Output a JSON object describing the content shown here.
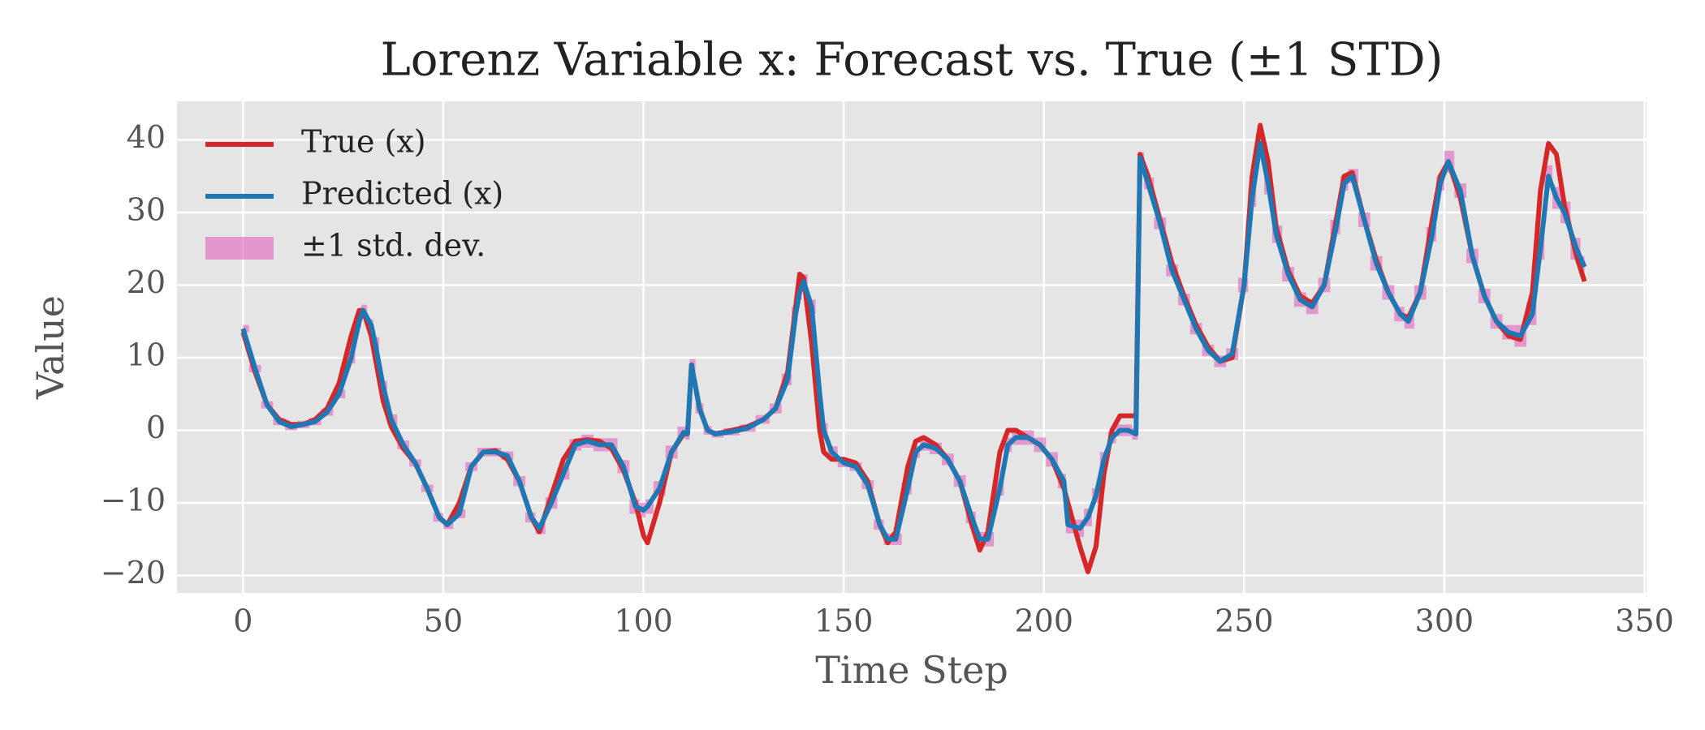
{
  "chart_data": {
    "type": "line",
    "title": "Lorenz Variable x: Forecast vs. True (±1 STD)",
    "xlabel": "Time Step",
    "ylabel": "Value",
    "xlim": [
      -16.5,
      350.5
    ],
    "ylim": [
      -22.4,
      45.3
    ],
    "xticks": [
      0,
      50,
      100,
      150,
      200,
      250,
      300,
      350
    ],
    "yticks": [
      {
        "value": -20,
        "label": "−20"
      },
      {
        "value": -10,
        "label": "−10"
      },
      0,
      10,
      20,
      30,
      40
    ],
    "grid": true,
    "legend": "upper left",
    "x": [
      0,
      3,
      6,
      9,
      12,
      15,
      18,
      21,
      24,
      27,
      29,
      30,
      32,
      33,
      35,
      37,
      40,
      43,
      46,
      49,
      51,
      54,
      57,
      60,
      63,
      66,
      69,
      72,
      74,
      77,
      80,
      83,
      86,
      89,
      92,
      95,
      98,
      100,
      101,
      104,
      107,
      110,
      111,
      112,
      114,
      116,
      118,
      122,
      126,
      130,
      133,
      136,
      138,
      139,
      140,
      142,
      144,
      145,
      147,
      150,
      153,
      156,
      159,
      161,
      163,
      166,
      168,
      170,
      173,
      176,
      179,
      182,
      184,
      186,
      189,
      191,
      193,
      196,
      199,
      202,
      205,
      206,
      209,
      211,
      213,
      215,
      217,
      219,
      221,
      223,
      224,
      226,
      229,
      232,
      235,
      238,
      241,
      244,
      247,
      250,
      252,
      254,
      256,
      258,
      261,
      264,
      267,
      270,
      273,
      275,
      277,
      280,
      283,
      286,
      289,
      291,
      294,
      297,
      299,
      301,
      304,
      307,
      310,
      313,
      316,
      319,
      322,
      324,
      326,
      328,
      330,
      333,
      335
    ],
    "series": [
      {
        "name": "True (x)",
        "color": "#d62728",
        "values": [
          13.5,
          8,
          3.5,
          1.5,
          0.8,
          0.8,
          1.5,
          3,
          6.5,
          13,
          16.5,
          16.5,
          13,
          10,
          4,
          0.5,
          -2.5,
          -4.5,
          -8,
          -12,
          -13,
          -10,
          -5,
          -3,
          -2.8,
          -4,
          -7,
          -12,
          -14,
          -9,
          -4,
          -1.5,
          -1.3,
          -1.5,
          -2.5,
          -5.5,
          -10,
          -14.5,
          -15.5,
          -10,
          -3,
          -0.5,
          -0.5,
          9,
          3,
          0,
          -0.5,
          0,
          0.5,
          1.5,
          3,
          8,
          17,
          21.5,
          21,
          12,
          0,
          -3,
          -4,
          -4,
          -4.5,
          -7,
          -13,
          -15.5,
          -14,
          -5,
          -1.5,
          -1,
          -2,
          -4,
          -7,
          -13,
          -16.5,
          -14,
          -3,
          0,
          0,
          -1,
          -2,
          -4,
          -8,
          -10,
          -16,
          -19.5,
          -16,
          -6,
          0,
          2,
          2,
          2,
          38,
          35,
          29,
          23,
          18.5,
          14.5,
          11.5,
          9.5,
          10,
          20,
          35,
          42,
          37,
          28,
          22,
          18.5,
          17.5,
          20,
          29,
          35,
          35.5,
          29,
          23.5,
          19,
          16,
          15.5,
          19,
          29,
          35,
          37,
          32,
          24,
          18.5,
          15,
          13,
          12.5,
          19,
          33,
          39.5,
          38,
          31,
          24,
          20.5
        ]
      },
      {
        "name": "Predicted (x)",
        "color": "#1f77b4",
        "values": [
          14,
          8.5,
          3.5,
          1.2,
          0.5,
          0.8,
          1.2,
          2.5,
          5,
          10,
          15,
          16.5,
          14.5,
          12,
          6,
          1.5,
          -2,
          -4.5,
          -8,
          -12,
          -13,
          -11.5,
          -5,
          -3,
          -3,
          -3.5,
          -7,
          -12,
          -13.5,
          -10,
          -6,
          -2,
          -1.5,
          -2,
          -2,
          -5,
          -10.5,
          -11,
          -10.5,
          -8,
          -3,
          -0.3,
          -0.5,
          9,
          3,
          0,
          -0.5,
          -0.2,
          0.3,
          1.5,
          3,
          7,
          16,
          19,
          20.5,
          17,
          5,
          0,
          -3,
          -4.5,
          -5,
          -7.5,
          -13,
          -15,
          -15,
          -8,
          -3,
          -2,
          -2.5,
          -4,
          -7,
          -12,
          -15,
          -15,
          -8,
          -2,
          -1,
          -1,
          -2,
          -4,
          -7,
          -13,
          -13.5,
          -12,
          -9,
          -4,
          -1,
          0,
          0,
          -0.5,
          37.5,
          34,
          28.5,
          22,
          18,
          14,
          11,
          9.5,
          10.5,
          20,
          32,
          39.5,
          34,
          27,
          21.5,
          18,
          17,
          20,
          28,
          34,
          35,
          29,
          23,
          19,
          16,
          15,
          19,
          27,
          34,
          37,
          33,
          24,
          18.5,
          15,
          13.5,
          13,
          16,
          25,
          35,
          32,
          30,
          25,
          22.5
        ],
        "std": [
          0.5,
          0.5,
          0.5,
          0.5,
          0.5,
          0.5,
          0.5,
          0.5,
          0.6,
          0.8,
          0.8,
          0.8,
          0.8,
          0.8,
          0.8,
          0.7,
          0.6,
          0.5,
          0.5,
          0.6,
          0.6,
          0.6,
          0.6,
          0.6,
          0.6,
          0.6,
          0.7,
          0.7,
          0.8,
          0.8,
          0.8,
          0.8,
          0.9,
          0.9,
          0.9,
          0.9,
          1,
          1,
          1,
          1,
          0.9,
          0.8,
          0.8,
          0.8,
          0.7,
          0.6,
          0.5,
          0.5,
          0.5,
          0.6,
          0.7,
          0.8,
          1,
          1,
          1,
          1,
          1,
          1,
          0.8,
          0.6,
          0.6,
          0.6,
          0.7,
          0.8,
          0.8,
          0.8,
          0.8,
          0.8,
          0.8,
          0.8,
          0.8,
          0.8,
          1,
          1,
          1,
          1,
          1,
          1,
          1,
          1,
          1,
          1.2,
          1.2,
          1.2,
          1,
          1,
          0.8,
          0.8,
          0.8,
          0.8,
          0.8,
          0.8,
          0.8,
          0.8,
          0.8,
          0.8,
          0.8,
          0.8,
          0.8,
          1,
          1.2,
          1.5,
          1.5,
          1.2,
          1,
          1,
          1,
          1,
          1,
          1,
          1,
          1,
          1,
          1,
          1,
          1,
          1,
          1,
          1,
          1.5,
          1,
          1,
          1,
          1,
          1,
          1.5,
          1.5,
          1.5,
          1.5,
          1.5,
          1.5,
          1.5,
          1.5
        ],
        "band_name": "±1 std. dev.",
        "band_color": "#e377c2"
      }
    ]
  }
}
